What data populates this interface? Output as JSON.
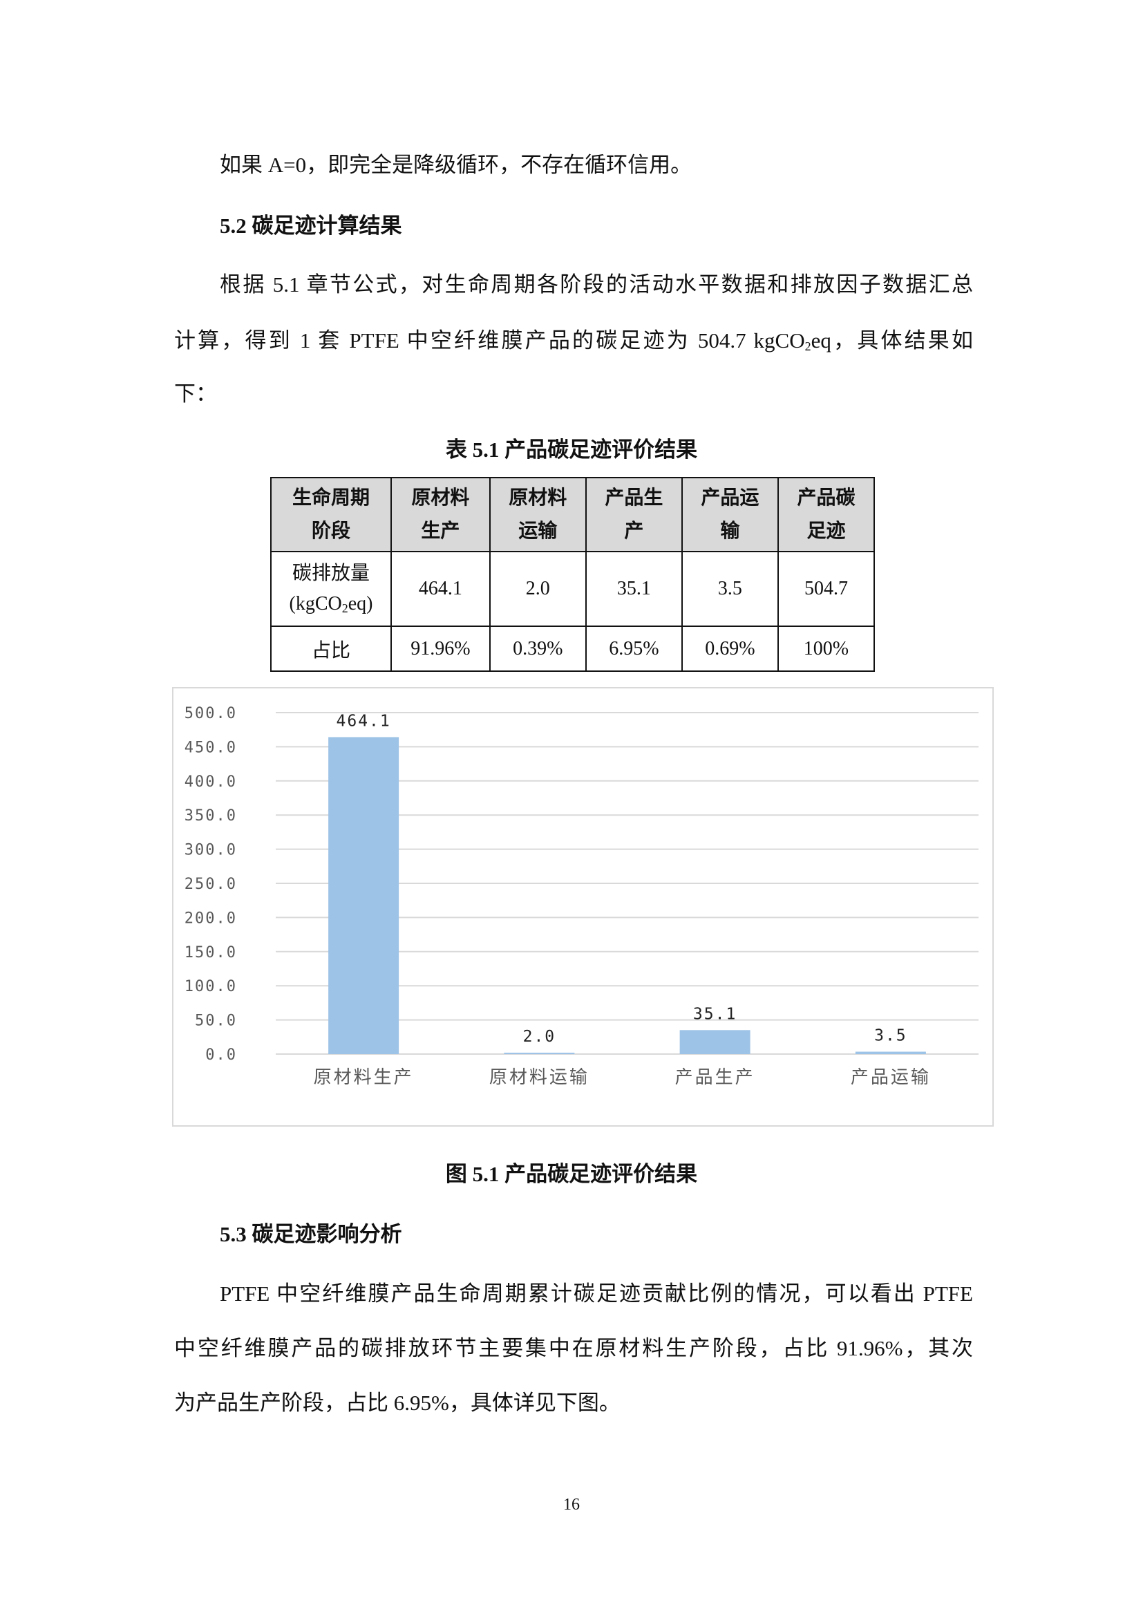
{
  "body": {
    "p0": "如果 A=0，即完全是降级循环，不存在循环信用。",
    "h52": "5.2  碳足迹计算结果",
    "p1_l1": "根据 5.1 章节公式，对生命周期各阶段的活动水平数据和排放因子数据汇总",
    "p1_l2a": "计算，得到 1 套 PTFE 中空纤维膜产品的碳足迹为 504.7 kgCO",
    "p1_l2sub": "2",
    "p1_l2b": "eq，具体结果如",
    "p1_l3": "下：",
    "h53": "5.3  碳足迹影响分析",
    "p2_l1": "PTFE 中空纤维膜产品生命周期累计碳足迹贡献比例的情况，可以看出 PTFE",
    "p2_l2": "中空纤维膜产品的碳排放环节主要集中在原材料生产阶段，占比 91.96%，其次",
    "p2_l3": "为产品生产阶段，占比 6.95%，具体详见下图。"
  },
  "table": {
    "caption": "表 5.1  产品碳足迹评价结果",
    "headers": [
      [
        "生命周期",
        "阶段"
      ],
      [
        "原材料",
        "生产"
      ],
      [
        "原材料",
        "运输"
      ],
      [
        "产品生",
        "产"
      ],
      [
        "产品运",
        "输"
      ],
      [
        "产品碳",
        "足迹"
      ]
    ],
    "row_emission": {
      "label_line1": "碳排放量",
      "label_line2a": "(kgCO",
      "label_sub": "2",
      "label_line2b": "eq)",
      "values": [
        "464.1",
        "2.0",
        "35.1",
        "3.5",
        "504.7"
      ]
    },
    "row_share": {
      "label": "占比",
      "values": [
        "91.96%",
        "0.39%",
        "6.95%",
        "0.69%",
        "100%"
      ]
    }
  },
  "figure_caption": "图 5.1  产品碳足迹评价结果",
  "page_number": "16",
  "chart_data": {
    "type": "bar",
    "categories": [
      "原材料生产",
      "原材料运输",
      "产品生产",
      "产品运输"
    ],
    "values": [
      464.1,
      2.0,
      35.1,
      3.5
    ],
    "data_labels": [
      "464.1",
      "2.0",
      "35.1",
      "3.5"
    ],
    "yticks": [
      "0.0",
      "50.0",
      "100.0",
      "150.0",
      "200.0",
      "250.0",
      "300.0",
      "350.0",
      "400.0",
      "450.0",
      "500.0"
    ],
    "ylim": [
      0,
      500
    ],
    "grid": true,
    "legend": "none",
    "bar_color": "#9dc3e6",
    "grid_color": "#d9d9d9"
  }
}
